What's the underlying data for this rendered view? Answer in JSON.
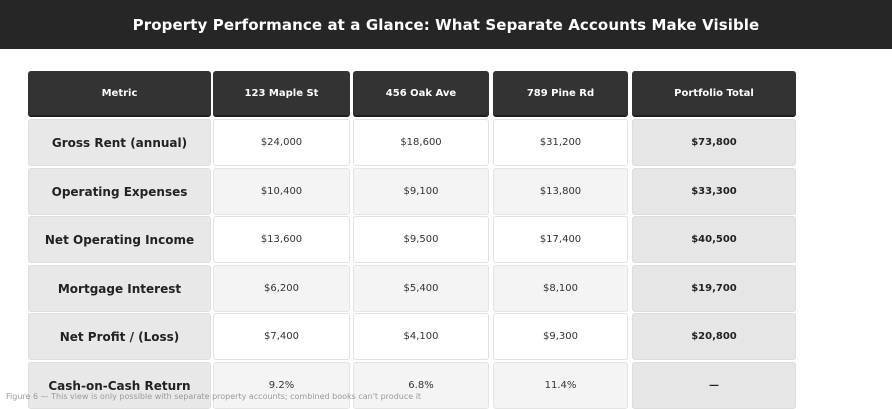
{
  "title": "Property Performance at a Glance: What Separate Accounts Make Visible",
  "chart_data": {
    "type": "table",
    "columns": [
      "Metric",
      "123 Maple St",
      "456 Oak Ave",
      "789 Pine Rd",
      "Portfolio Total"
    ],
    "rows": [
      {
        "metric": "Gross Rent (annual)",
        "values": [
          "$24,000",
          "$18,600",
          "$31,200"
        ],
        "total": "$73,800"
      },
      {
        "metric": "Operating Expenses",
        "values": [
          "$10,400",
          "$9,100",
          "$13,800"
        ],
        "total": "$33,300"
      },
      {
        "metric": "Net Operating Income",
        "values": [
          "$13,600",
          "$9,500",
          "$17,400"
        ],
        "total": "$40,500"
      },
      {
        "metric": "Mortgage Interest",
        "values": [
          "$6,200",
          "$5,400",
          "$8,100"
        ],
        "total": "$19,700"
      },
      {
        "metric": "Net Profit / (Loss)",
        "values": [
          "$7,400",
          "$4,100",
          "$9,300"
        ],
        "total": "$20,800"
      },
      {
        "metric": "Cash-on-Cash Return",
        "values": [
          "9.2%",
          "6.8%",
          "11.4%"
        ],
        "total": "—"
      }
    ]
  },
  "caption": "Figure 6 — This view is only possible with separate property accounts; combined books can't produce it"
}
